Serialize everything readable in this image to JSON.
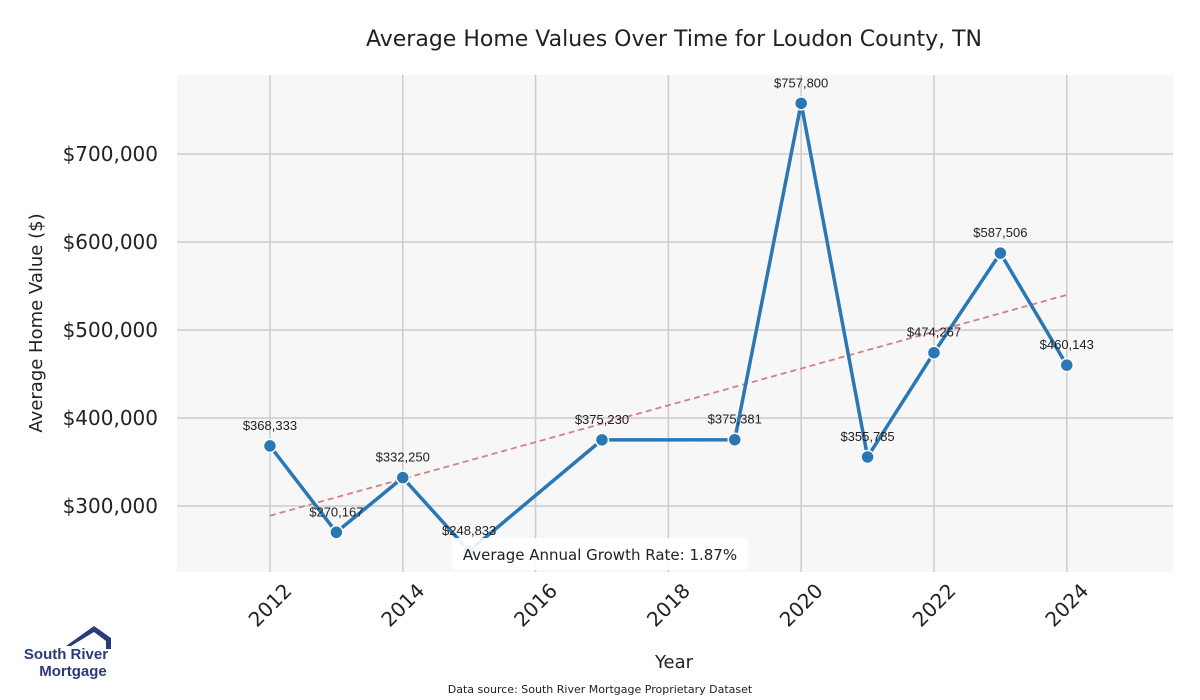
{
  "chart_data": {
    "type": "line",
    "title": "Average Home Values Over Time for Loudon County, TN",
    "xlabel": "Year",
    "ylabel": "Average Home Value ($)",
    "x": [
      2012,
      2013,
      2014,
      2015,
      2017,
      2019,
      2020,
      2021,
      2022,
      2023,
      2024
    ],
    "values": [
      368333,
      270167,
      332250,
      248833,
      375230,
      375381,
      757800,
      355785,
      474267,
      587506,
      460143
    ],
    "data_labels": [
      "$368,333",
      "$270,167",
      "$332,250",
      "$248,833",
      "$375,230",
      "$375,381",
      "$757,800",
      "$355,785",
      "$474,267",
      "$587,506",
      "$460,143"
    ],
    "trend": {
      "x": [
        2012,
        2024
      ],
      "y": [
        289000,
        540000
      ],
      "style": "dashed"
    },
    "xlim": [
      2010.6,
      2025.6
    ],
    "ylim": [
      225000,
      790000
    ],
    "xticks": [
      2012,
      2014,
      2016,
      2018,
      2020,
      2022,
      2024
    ],
    "yticks": [
      300000,
      400000,
      500000,
      600000,
      700000
    ],
    "ytick_labels": [
      "$300,000",
      "$400,000",
      "$500,000",
      "$600,000",
      "$700,000"
    ],
    "annotation": "Average Annual Growth Rate: 1.87%",
    "grid": true,
    "line_color": "#2a77b3",
    "trend_color": "#d48080",
    "plot_background": "#f7f7f7",
    "grid_color": "#cccccc"
  },
  "footer": {
    "source": "Data source: South River Mortgage Proprietary Dataset"
  },
  "logo": {
    "line1": "South River",
    "line2": "Mortgage",
    "icon": "house-icon",
    "color": "#2b3a7a"
  }
}
